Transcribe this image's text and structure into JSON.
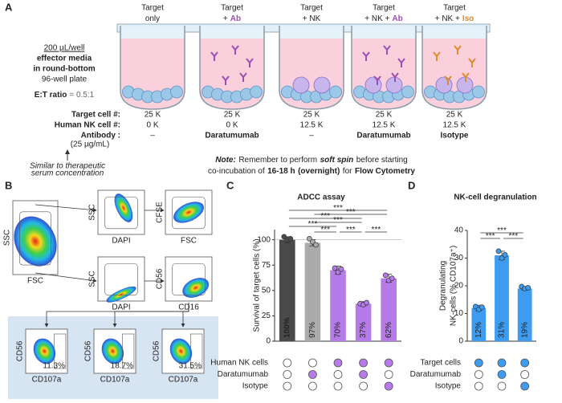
{
  "panel_a": {
    "label": "A",
    "wells": [
      {
        "line1": "Target",
        "line2": "only"
      },
      {
        "line1": "Target",
        "line2": "+",
        "agent": "Ab",
        "color": "#9b4fb0"
      },
      {
        "line1": "Target",
        "line2": "+ NK"
      },
      {
        "line1": "Target",
        "line2": "+ NK +",
        "agent": "Ab",
        "color": "#9b4fb0"
      },
      {
        "line1": "Target",
        "line2": "+ NK +",
        "agent": "Iso",
        "color": "#e08a2c"
      }
    ],
    "setup_lines": [
      "200 µL/well",
      "effector media",
      "in round-bottom",
      "96-well plate"
    ],
    "et_ratio": {
      "label": "E:T ratio",
      "value": "= 0.5:1"
    },
    "row_labels": [
      "Target cell #:",
      "Human NK cell #:",
      "Antibody :"
    ],
    "antibody_conc": "(25 µg/mL)",
    "target_cells": [
      "25 K",
      "25 K",
      "25 K",
      "25 K",
      "25 K"
    ],
    "nk_cells": [
      "0 K",
      "0 K",
      "12.5 K",
      "12.5 K",
      "12.5 K"
    ],
    "antibody": [
      "–",
      "Daratumumab",
      "–",
      "Daratumumab",
      "Isotype"
    ],
    "annotation": [
      "Similar to therapeutic",
      "serum concentration"
    ],
    "note": [
      [
        {
          "text": "Note:",
          "style": "bold-italic"
        },
        {
          "text": "Remember to perform"
        },
        {
          "text": "soft spin",
          "style": "bold-italic"
        },
        {
          "text": "before starting"
        }
      ],
      [
        {
          "text": "co-incubation of"
        },
        {
          "text": "16-18 h",
          "style": "bold"
        },
        {
          "text": "(overnight)",
          "style": "bold"
        },
        {
          "text": "for"
        },
        {
          "text": "Flow Cytometry",
          "style": "bold"
        }
      ]
    ]
  },
  "panel_b": {
    "label": "B",
    "plots": [
      {
        "x": "FSC",
        "y": "SSC"
      },
      {
        "x": "DAPI",
        "y": "SSC"
      },
      {
        "x": "FSC",
        "y": "CFSE"
      },
      {
        "x": "DAPI",
        "y": "SSC"
      },
      {
        "x": "CD16",
        "y": "CD56"
      },
      {
        "x": "CD107a",
        "y": "CD56",
        "gate": "11.3%"
      },
      {
        "x": "CD107a",
        "y": "CD56",
        "gate": "18.7%"
      },
      {
        "x": "CD107a",
        "y": "CD56",
        "gate": "31.5%"
      }
    ]
  },
  "chart_data": [
    {
      "type": "bar",
      "panel": "C",
      "title": "ADCC assay",
      "y_label": [
        "Survival of target cells (%)"
      ],
      "values": [
        100,
        97,
        70,
        37,
        62
      ],
      "value_labels": [
        "100%",
        "97%",
        "70%",
        "37%",
        "62%"
      ],
      "errors": [
        3,
        3,
        4,
        2,
        4
      ],
      "points": [
        [
          103,
          100,
          101
        ],
        [
          101,
          98,
          95
        ],
        [
          72,
          68,
          71
        ],
        [
          37,
          36,
          38
        ],
        [
          65,
          60,
          62
        ]
      ],
      "colors": [
        "#4a4a4a",
        "#ababab",
        "#b57be8",
        "#b57be8",
        "#b57be8"
      ],
      "ylim": [
        0,
        110
      ],
      "yticks": [
        0,
        25,
        50,
        75,
        100
      ],
      "reference_line": 100,
      "significance": [
        {
          "from": 0,
          "to": 4,
          "label": "***"
        },
        {
          "from": 1,
          "to": 4,
          "label": "***"
        },
        {
          "from": 0,
          "to": 3,
          "label": "***"
        },
        {
          "from": 1,
          "to": 3,
          "label": "***"
        },
        {
          "from": 0,
          "to": 2,
          "label": "***"
        },
        {
          "from": 1,
          "to": 2,
          "label": "***"
        },
        {
          "from": 2,
          "to": 3,
          "label": "***"
        },
        {
          "from": 3,
          "to": 4,
          "label": "***"
        }
      ],
      "marker_color": "#b57be8",
      "conditions": [
        {
          "name": "Human NK cells",
          "present": [
            false,
            false,
            true,
            true,
            true
          ]
        },
        {
          "name": "Daratumumab",
          "present": [
            false,
            true,
            false,
            true,
            false
          ]
        },
        {
          "name": "Isotype",
          "present": [
            false,
            false,
            false,
            false,
            true
          ]
        }
      ]
    },
    {
      "type": "bar",
      "panel": "D",
      "title": "NK-cell degranulation",
      "y_label": [
        "Degranulating",
        "NK-cells (% CD107a⁺)"
      ],
      "values": [
        12,
        31,
        19
      ],
      "value_labels": [
        "12%",
        "31%",
        "19%"
      ],
      "errors": [
        1,
        1.5,
        0.5
      ],
      "points": [
        [
          12.5,
          11.5,
          12.3
        ],
        [
          32.5,
          30,
          31.2
        ],
        [
          19.7,
          19,
          19.3
        ]
      ],
      "colors": [
        "#3d9cf0",
        "#3d9cf0",
        "#3d9cf0"
      ],
      "ylim": [
        0,
        40
      ],
      "yticks": [
        0,
        10,
        20,
        30,
        40
      ],
      "significance": [
        {
          "from": 0,
          "to": 2,
          "label": "***"
        },
        {
          "from": 0,
          "to": 1,
          "label": "***"
        },
        {
          "from": 1,
          "to": 2,
          "label": "***"
        }
      ],
      "marker_color": "#3d9cf0",
      "conditions": [
        {
          "name": "Target cells",
          "present": [
            true,
            true,
            true
          ]
        },
        {
          "name": "Daratumumab",
          "present": [
            false,
            true,
            false
          ]
        },
        {
          "name": "Isotype",
          "present": [
            false,
            false,
            true
          ]
        }
      ]
    }
  ]
}
